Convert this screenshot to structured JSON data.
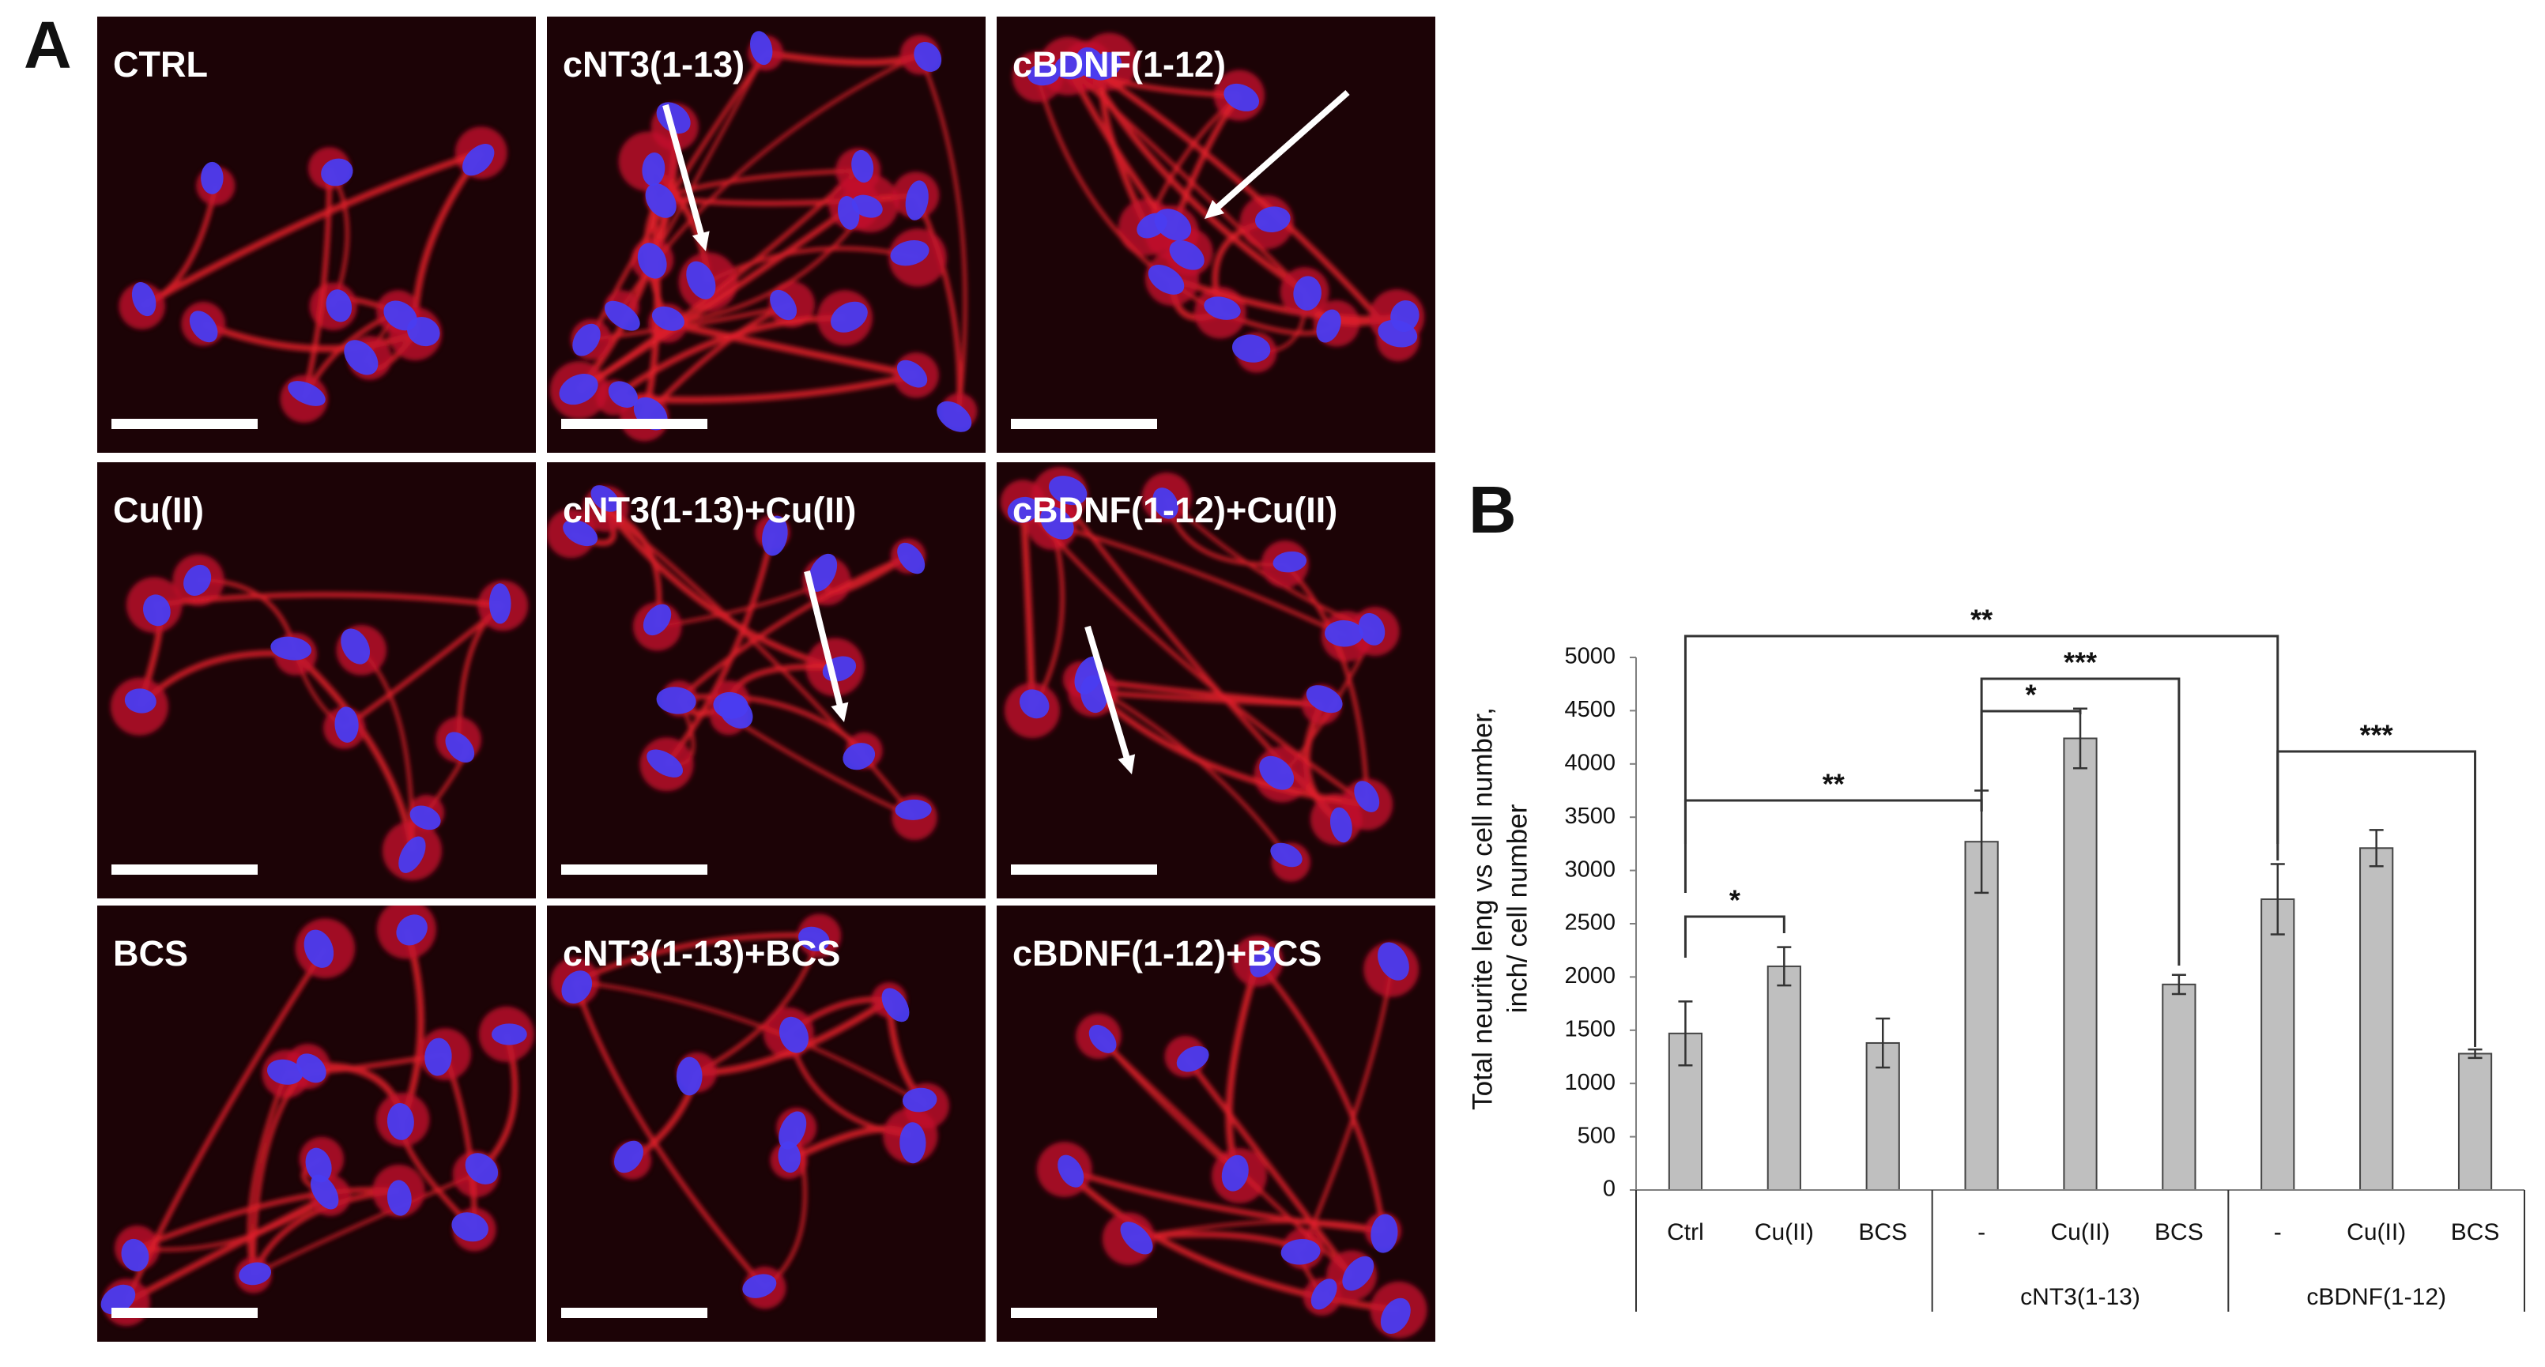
{
  "panel_labels": [
    "A",
    "B"
  ],
  "micrographs": [
    [
      "CTRL",
      "cNT3(1-13)",
      "cBDNF(1-12)"
    ],
    [
      "Cu(II)",
      "cNT3(1-13)+Cu(II)",
      "cBDNF(1-12)+Cu(II)"
    ],
    [
      "BCS",
      "cNT3(1-13)+BCS",
      "cBDNF(1-12)+BCS"
    ]
  ],
  "chart_data": {
    "type": "bar",
    "ylabel": [
      "Total neurite leng vs cell number,",
      "inch/ cell number"
    ],
    "categories": [
      "Ctrl",
      "Cu(II)",
      "BCS",
      "-",
      "Cu(II)",
      "BCS",
      "-",
      "Cu(II)",
      "BCS"
    ],
    "group_labels": [
      null,
      "cNT3(1-13)",
      "cBDNF(1-12)"
    ],
    "values": [
      1470,
      2100,
      1380,
      3270,
      4240,
      1930,
      2730,
      3210,
      1280
    ],
    "errors": [
      300,
      180,
      230,
      480,
      280,
      90,
      330,
      170,
      40
    ],
    "color": "#bfbfbf",
    "ylim": [
      0,
      5000
    ],
    "yticks": [
      0,
      500,
      1000,
      1500,
      2000,
      2500,
      3000,
      3500,
      4000,
      4500,
      5000
    ],
    "annotations": [
      {
        "label": "*",
        "between": [
          0,
          1
        ]
      },
      {
        "label": "**",
        "between": [
          0,
          3
        ]
      },
      {
        "label": "**",
        "between": [
          0,
          6
        ]
      },
      {
        "label": "*",
        "between": [
          3,
          4
        ]
      },
      {
        "label": "***",
        "between": [
          3,
          5
        ]
      },
      {
        "label": "***",
        "between": [
          6,
          8
        ]
      }
    ]
  }
}
